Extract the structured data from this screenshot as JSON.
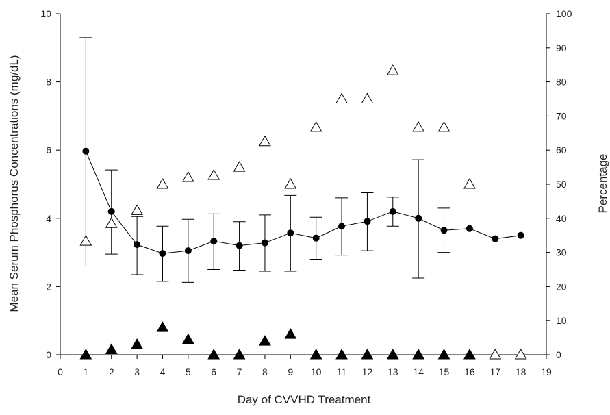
{
  "chart_data": {
    "type": "line",
    "xlabel": "Day of CVVHD Treatment",
    "ylabel": "Mean Serum Phosphorus Concentrations (mg/dL)",
    "ylabel_right": "Percentage",
    "xlim": [
      0,
      19
    ],
    "ylim": [
      0,
      10
    ],
    "ylim_right": [
      0,
      100
    ],
    "x_ticks": [
      "0",
      "1",
      "2",
      "3",
      "4",
      "5",
      "6",
      "7",
      "8",
      "9",
      "10",
      "11",
      "12",
      "13",
      "14",
      "15",
      "16",
      "17",
      "18",
      "19"
    ],
    "y_ticks": [
      "0",
      "2",
      "4",
      "6",
      "8",
      "10"
    ],
    "y_right_ticks": [
      "0",
      "10",
      "20",
      "30",
      "40",
      "50",
      "60",
      "70",
      "80",
      "90",
      "100"
    ],
    "grid": false,
    "series": [
      {
        "marker": "filled-circle",
        "axis": "left",
        "x": [
          1,
          2,
          3,
          4,
          5,
          6,
          7,
          8,
          9,
          10,
          11,
          12,
          13,
          14,
          15,
          16,
          17,
          18
        ],
        "y": [
          5.97,
          4.2,
          3.23,
          2.97,
          3.05,
          3.33,
          3.2,
          3.28,
          3.57,
          3.42,
          3.77,
          3.91,
          4.2,
          4.0,
          3.65,
          3.7,
          3.4,
          3.5
        ],
        "err_low": [
          2.6,
          2.95,
          2.35,
          2.15,
          2.12,
          2.5,
          2.48,
          2.45,
          2.45,
          2.8,
          2.92,
          3.05,
          3.77,
          2.25,
          3.0,
          null,
          null,
          null
        ],
        "err_high": [
          9.3,
          5.42,
          4.05,
          3.77,
          3.97,
          4.13,
          3.9,
          4.1,
          4.67,
          4.03,
          4.6,
          4.75,
          4.62,
          5.72,
          4.3,
          null,
          null,
          null
        ]
      },
      {
        "marker": "open-triangle",
        "axis": "right",
        "x": [
          1,
          2,
          3,
          4,
          5,
          6,
          7,
          8,
          9,
          10,
          11,
          12,
          13,
          14,
          15,
          16,
          17,
          18
        ],
        "y": [
          33.3,
          38.5,
          42.3,
          50,
          52,
          52.6,
          55,
          62.5,
          50,
          66.7,
          75,
          75,
          83.3,
          66.7,
          66.7,
          50,
          0,
          0
        ]
      },
      {
        "marker": "filled-triangle",
        "axis": "right",
        "x": [
          1,
          2,
          3,
          4,
          5,
          6,
          7,
          8,
          9,
          10,
          11,
          12,
          13,
          14,
          15,
          16
        ],
        "y": [
          0,
          1.5,
          3,
          8,
          4.5,
          0,
          0,
          4,
          6,
          0,
          0,
          0,
          0,
          0,
          0,
          0
        ]
      }
    ]
  }
}
